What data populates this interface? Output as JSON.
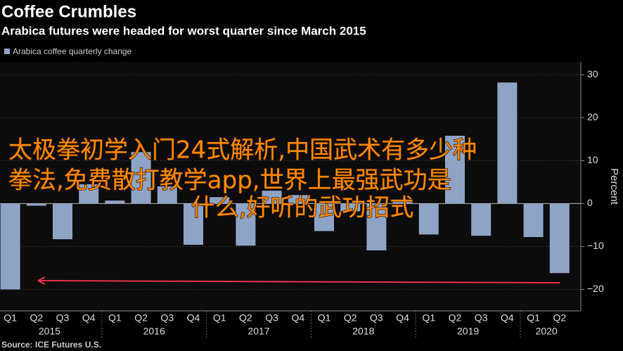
{
  "chart_data": {
    "type": "bar",
    "title": "Coffee Crumbles",
    "subtitle": "Arabica futures were headed for worst quarter since March 2015",
    "y_label": "Percent",
    "source": "Source: ICE Futures U.S.",
    "categories": [
      "Q1",
      "Q2",
      "Q3",
      "Q4",
      "Q1",
      "Q2",
      "Q3",
      "Q4",
      "Q1",
      "Q2",
      "Q3",
      "Q4",
      "Q1",
      "Q2",
      "Q3",
      "Q4",
      "Q1",
      "Q2",
      "Q3",
      "Q4",
      "Q1",
      "Q2"
    ],
    "years": [
      "2015",
      "2016",
      "2017",
      "2018",
      "2019",
      "2020"
    ],
    "series": [
      {
        "name": "Arabica coffee quarterly change",
        "color": "#8ea4c6",
        "values": [
          -20,
          -0.5,
          -8.3,
          4.5,
          0.7,
          12,
          4,
          -9.6,
          1.5,
          -9.8,
          3,
          2,
          -6.4,
          -1.8,
          -10.9,
          1,
          -7.2,
          15.8,
          -7.5,
          28.2,
          -7.8,
          -16.2
        ]
      }
    ],
    "ylim": [
      -25,
      33
    ],
    "yticks": [
      {
        "value": -20,
        "label": "−20"
      },
      {
        "value": -10,
        "label": "−10"
      },
      0,
      10,
      20,
      30
    ],
    "grid": true,
    "overlay_text": [
      "太极拳初学入门24式解析,中国武术有多少种",
      "拳法,免费散打教学app,世界上最强武功是",
      "什么,好听的武功招式"
    ]
  }
}
